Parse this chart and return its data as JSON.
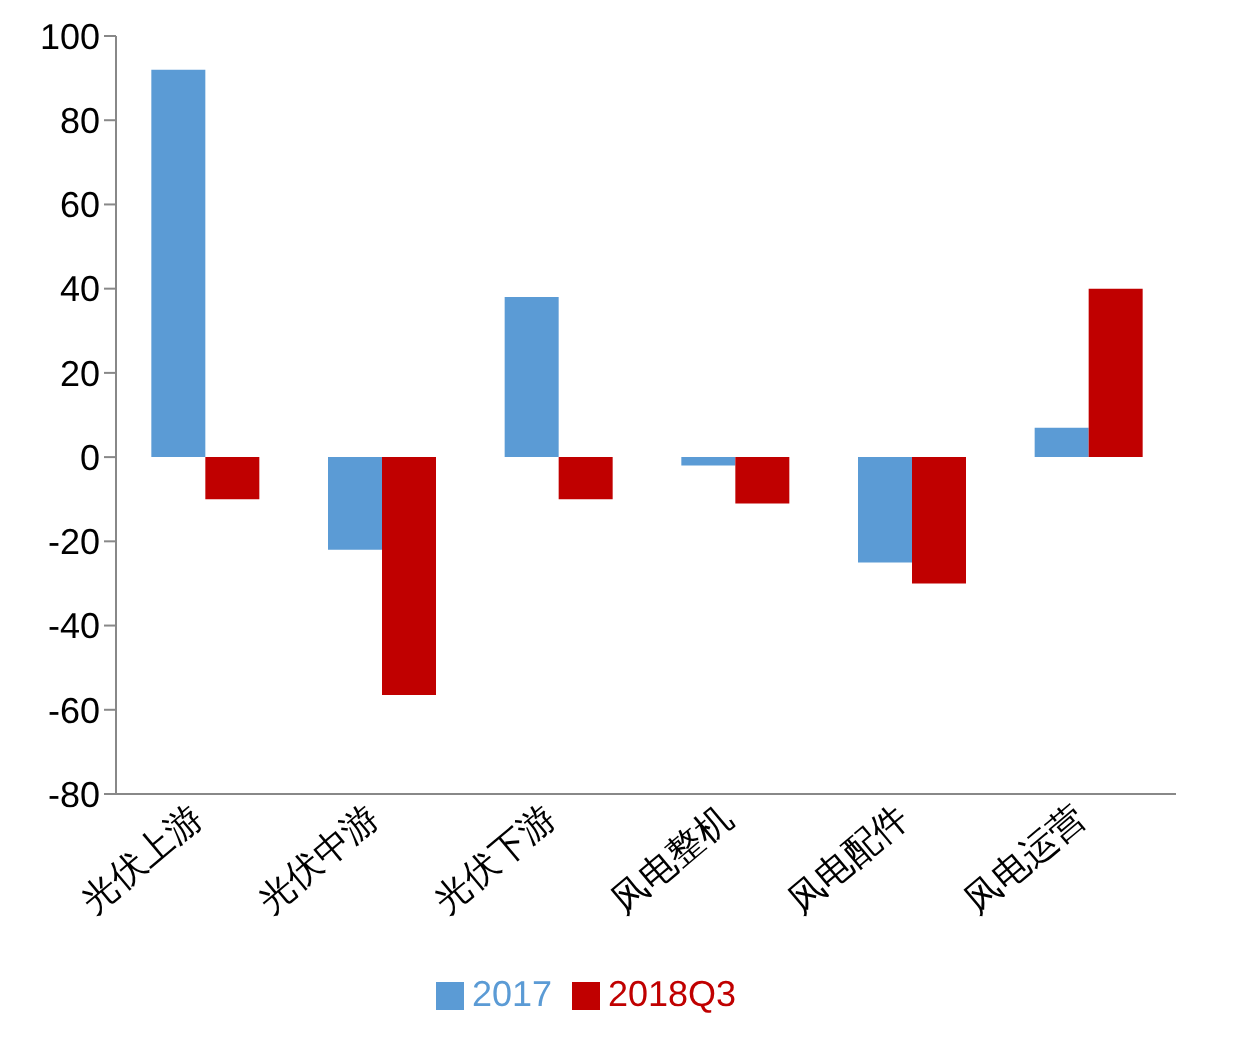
{
  "chart_data": {
    "type": "bar",
    "categories": [
      "光伏上游",
      "光伏中游",
      "光伏下游",
      "风电整机",
      "风电配件",
      "风电运营"
    ],
    "series": [
      {
        "name": "2017",
        "color": "#5b9bd5",
        "values": [
          92,
          -22,
          38,
          -2,
          -25,
          7
        ]
      },
      {
        "name": "2018Q3",
        "color": "#c00000",
        "values": [
          -10,
          -56.5,
          -10,
          -11,
          -30,
          40
        ]
      }
    ],
    "ylim": [
      -80,
      100
    ],
    "yticks": [
      -80,
      -60,
      -40,
      -20,
      0,
      20,
      40,
      60,
      80,
      100
    ],
    "grid": false,
    "legend": "bottom"
  }
}
